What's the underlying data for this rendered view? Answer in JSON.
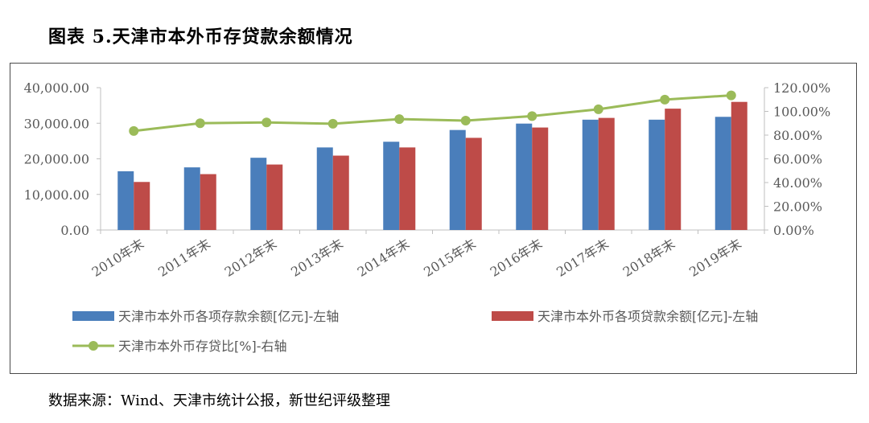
{
  "figure": {
    "title": "图表 5.天津市本外币存贷款余额情况",
    "source": "数据来源：Wind、天津市统计公报，新世纪评级整理"
  },
  "chart_data": {
    "type": "bar+line",
    "categories": [
      "2010年末",
      "2011年末",
      "2012年末",
      "2013年末",
      "2014年末",
      "2015年末",
      "2016年末",
      "2017年末",
      "2018年末",
      "2019年末"
    ],
    "series": [
      {
        "name": "天津市本外币各项存款余额[亿元]-左轴",
        "type": "bar",
        "axis": "left",
        "color": "#4A7EBB",
        "values": [
          16500,
          17600,
          20300,
          23200,
          24800,
          28100,
          29900,
          31000,
          31000,
          31800
        ]
      },
      {
        "name": "天津市本外币各项贷款余额[亿元]-左轴",
        "type": "bar",
        "axis": "left",
        "color": "#BE4B48",
        "values": [
          13500,
          15700,
          18400,
          20900,
          23200,
          25900,
          28800,
          31500,
          34100,
          36000
        ]
      },
      {
        "name": "天津市本外币存贷比[%]-右轴",
        "type": "line",
        "axis": "right",
        "color": "#9BBB59",
        "values": [
          83.5,
          90.0,
          90.7,
          89.6,
          93.5,
          92.2,
          96.0,
          101.8,
          109.9,
          113.5
        ]
      }
    ],
    "left_axis": {
      "min": 0,
      "max": 40000,
      "ticks": [
        "0.00",
        "10,000.00",
        "20,000.00",
        "30,000.00",
        "40,000.00"
      ]
    },
    "right_axis": {
      "min": 0,
      "max": 120,
      "ticks": [
        "0.00%",
        "20.00%",
        "40.00%",
        "60.00%",
        "80.00%",
        "100.00%",
        "120.00%"
      ]
    },
    "grid": false,
    "legend_position": "bottom"
  }
}
